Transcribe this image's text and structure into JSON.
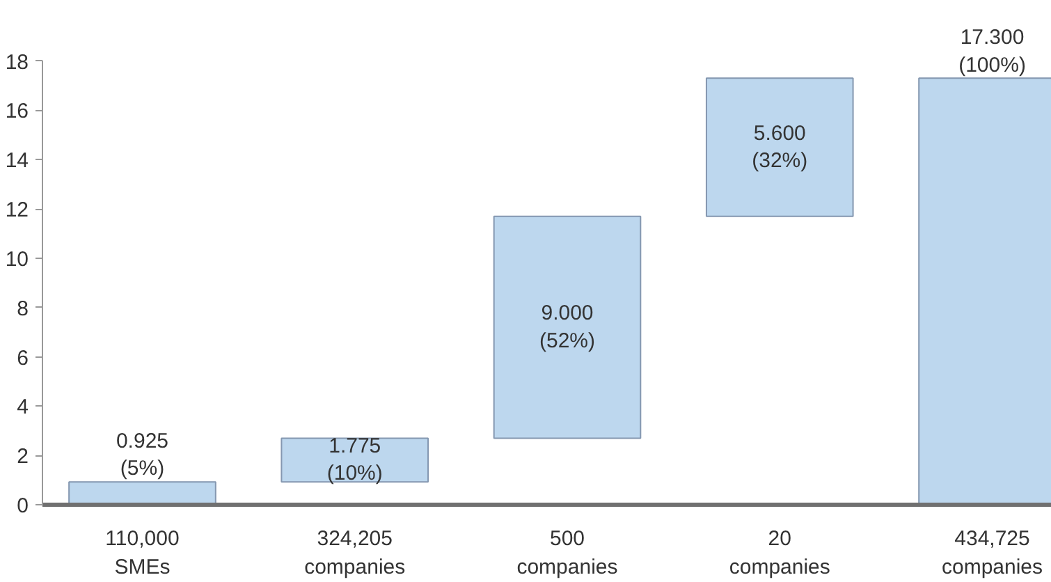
{
  "chart_data": {
    "type": "bar",
    "categories": [
      "110,000\nSMEs",
      "324,205\ncompanies",
      "500\ncompanies",
      "20\ncompanies",
      "434,725\ncompanies"
    ],
    "values": [
      0.925,
      1.775,
      9.0,
      5.6,
      17.3
    ],
    "base": [
      0,
      0.925,
      2.7,
      11.7,
      0
    ],
    "color": "#bdd7ee",
    "value_labels": [
      "0.925\n(5%)",
      "1.775\n(10%)",
      "9.000\n(52%)",
      "5.600\n(32%)",
      "17.300\n(100%)"
    ],
    "ylim": [
      0,
      18
    ],
    "yticks": [
      0,
      2,
      4,
      6,
      8,
      10,
      12,
      14,
      16,
      18
    ],
    "grid": false
  }
}
